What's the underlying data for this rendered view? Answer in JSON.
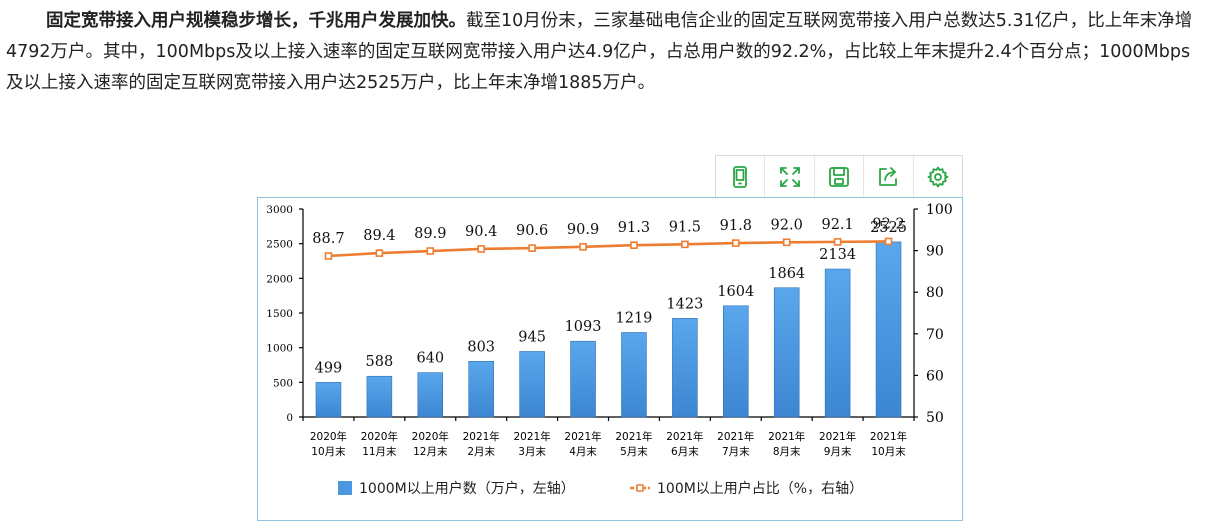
{
  "article": {
    "lead": "固定宽带接入用户规模稳步增长，千兆用户发展加快。",
    "body": "截至10月份末，三家基础电信企业的固定互联网宽带接入用户总数达5.31亿户，比上年末净增4792万户。其中，100Mbps及以上接入速率的固定互联网宽带接入用户达4.9亿户，占总用户数的92.2%，占比较上年末提升2.4个百分点；1000Mbps及以上接入速率的固定互联网宽带接入用户达2525万户，比上年末净增1885万户。"
  },
  "toolbox": [
    {
      "name": "tablet-view-icon"
    },
    {
      "name": "fullscreen-icon"
    },
    {
      "name": "save-image-icon"
    },
    {
      "name": "share-icon"
    },
    {
      "name": "settings-icon"
    }
  ],
  "chart_data": {
    "type": "bar",
    "categories": [
      [
        "2020年",
        "10月末"
      ],
      [
        "2020年",
        "11月末"
      ],
      [
        "2020年",
        "12月末"
      ],
      [
        "2021年",
        "2月末"
      ],
      [
        "2021年",
        "3月末"
      ],
      [
        "2021年",
        "4月末"
      ],
      [
        "2021年",
        "5月末"
      ],
      [
        "2021年",
        "6月末"
      ],
      [
        "2021年",
        "7月末"
      ],
      [
        "2021年",
        "8月末"
      ],
      [
        "2021年",
        "9月末"
      ],
      [
        "2021年",
        "10月末"
      ]
    ],
    "series": [
      {
        "name": "1000M以上用户数（万户，左轴）",
        "type": "bar",
        "axis": "left",
        "color": "#4a98e0",
        "values": [
          499,
          588,
          640,
          803,
          945,
          1093,
          1219,
          1423,
          1604,
          1864,
          2134,
          2525
        ]
      },
      {
        "name": "100M以上用户占比（%，右轴）",
        "type": "line",
        "axis": "right",
        "color": "#ed7d31",
        "values": [
          88.7,
          89.4,
          89.9,
          90.4,
          90.6,
          90.9,
          91.3,
          91.5,
          91.8,
          92.0,
          92.1,
          92.2
        ]
      }
    ],
    "y_left": {
      "min": 0,
      "max": 3000,
      "ticks": [
        0,
        500,
        1000,
        1500,
        2000,
        2500,
        3000
      ]
    },
    "y_right": {
      "min": 50,
      "max": 100,
      "ticks": [
        50,
        60,
        70,
        80,
        90,
        100
      ]
    },
    "grid": false,
    "legend": "bottom"
  }
}
